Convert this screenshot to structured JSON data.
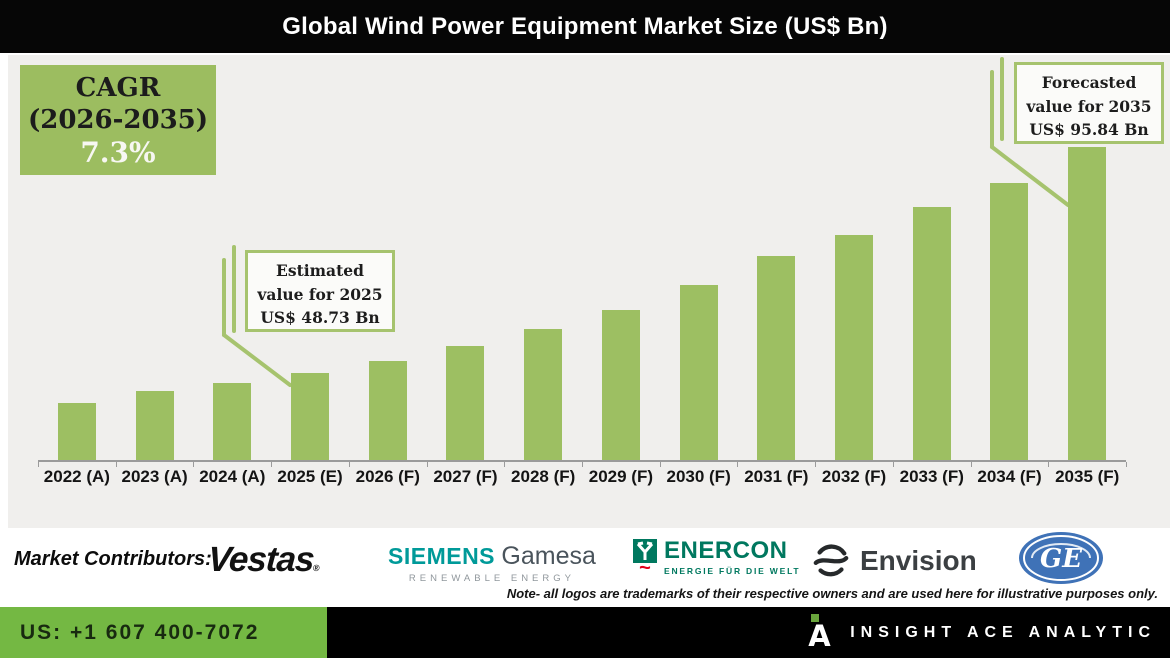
{
  "title": "Global Wind Power Equipment Market Size (US$ Bn)",
  "cagr_box": {
    "line1": "CAGR",
    "line2": "(2026-2035)",
    "line3": "7.3%"
  },
  "annotations": {
    "estimated": {
      "line1": "Estimated",
      "line2": "value for 2025",
      "line3": "US$ 48.73 Bn"
    },
    "forecasted": {
      "line1": "Forecasted",
      "line2": "value for 2035",
      "line3": "US$ 95.84 Bn"
    }
  },
  "chart_data": {
    "type": "bar",
    "title": "Global Wind Power Equipment Market Size (US$ Bn)",
    "unit": "US$ Bn",
    "categories": [
      "2022 (A)",
      "2023 (A)",
      "2024 (A)",
      "2025 (E)",
      "2026 (F)",
      "2027 (F)",
      "2028 (F)",
      "2029 (F)",
      "2030 (F)",
      "2031 (F)",
      "2032 (F)",
      "2033 (F)",
      "2034 (F)",
      "2035 (F)"
    ],
    "values": [
      42.5,
      45.0,
      46.6,
      48.73,
      51.2,
      54.3,
      57.9,
      61.9,
      67.1,
      73.1,
      77.5,
      83.3,
      88.3,
      95.84
    ],
    "labeled_values": {
      "2025 (E)": 48.73,
      "2035 (F)": 95.84
    },
    "cagr": {
      "period": "2026-2035",
      "value_pct": 7.3
    },
    "xlabel": "",
    "ylabel": "",
    "grid": false,
    "legend": false,
    "bar_color": "#9dbf62",
    "value_axis": {
      "hidden": true,
      "render_min": 30.6,
      "render_max": 95.84
    }
  },
  "contributors": {
    "label": "Market Contributors:",
    "logos": [
      {
        "name": "Vestas",
        "text": "Vestas",
        "reg": "®"
      },
      {
        "name": "Siemens Gamesa",
        "part1": "SIEMENS",
        "part2": "Gamesa",
        "tagline": "RENEWABLE ENERGY"
      },
      {
        "name": "ENERCON",
        "text": "ENERCON",
        "tagline": "ENERGIE FÜR DIE WELT",
        "tilde": "~"
      },
      {
        "name": "Envision",
        "text": "Envision"
      },
      {
        "name": "GE",
        "text": "GE"
      }
    ],
    "note": "Note- all logos are trademarks of their respective owners and are used here for illustrative purposes only."
  },
  "footer": {
    "phone": "US: +1 607 400-7072",
    "brand": "INSIGHT ACE ANALYTIC"
  },
  "colors": {
    "bar_green": "#9dbf62",
    "cagr_box_green": "#9cbd60",
    "annotation_border_green": "#a6c36e",
    "footer_green": "#74b843",
    "title_bar_black": "#060606",
    "panel_gray": "#f0efed",
    "siemens_teal": "#009a99",
    "enercon_green": "#00785f",
    "enercon_red": "#e2001a",
    "ge_blue": "#3f72b7",
    "brand_logo_green": "#6aa63d"
  }
}
